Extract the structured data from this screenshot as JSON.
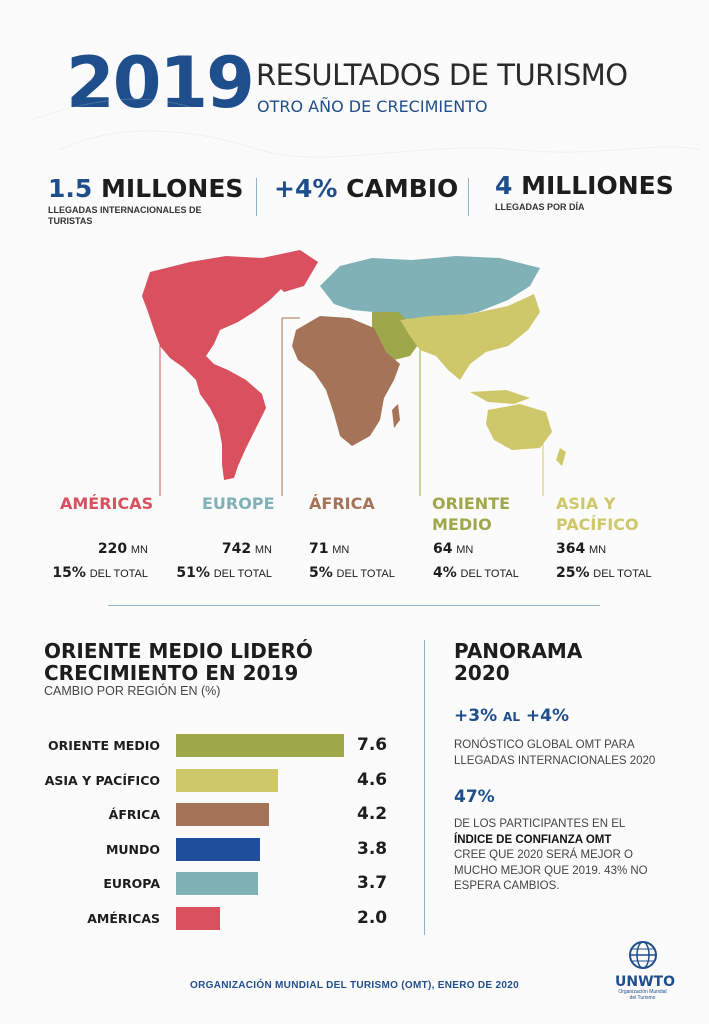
{
  "header": {
    "year": "2019",
    "title": "RESULTADOS DE TURISMO",
    "subtitle": "OTRO AÑO DE CRECIMIENTO"
  },
  "stats": [
    {
      "number": "1.5",
      "word": "MILLONES",
      "label": "LLEGADAS INTERNACIONALES DE TURISTAS"
    },
    {
      "number": "+4%",
      "word": "CAMBIO",
      "label": ""
    },
    {
      "number": "4",
      "word": "MILLIONES",
      "label": "LLEGADAS POR DÍA"
    }
  ],
  "regions": [
    {
      "name_line1": "AMÉRICAS",
      "name_line2": "",
      "value": "220",
      "unit": "MN",
      "share": "15%",
      "share_label": "DEL TOTAL",
      "color": "#d9505f"
    },
    {
      "name_line1": "EUROPE",
      "name_line2": "",
      "value": "742",
      "unit": "MN",
      "share": "51%",
      "share_label": "DEL TOTAL",
      "color": "#7fb1b6"
    },
    {
      "name_line1": "ÁFRICA",
      "name_line2": "",
      "value": "71",
      "unit": "MN",
      "share": "5%",
      "share_label": "DEL TOTAL",
      "color": "#a57358"
    },
    {
      "name_line1": "ORIENTE",
      "name_line2": "MEDIO",
      "value": "64",
      "unit": "MN",
      "share": "4%",
      "share_label": "DEL TOTAL",
      "color": "#9ea84a"
    },
    {
      "name_line1": "ASIA Y",
      "name_line2": "PACÍFICO",
      "value": "364",
      "unit": "MN",
      "share": "25%",
      "share_label": "DEL TOTAL",
      "color": "#cfc86a"
    }
  ],
  "growth": {
    "title_line1": "ORIENTE MEDIO LIDERÓ",
    "title_line2": "CRECIMIENTO EN 2019",
    "subtitle": "CAMBIO POR REGIÓN EN (%)"
  },
  "chart_data": {
    "type": "bar",
    "orientation": "horizontal",
    "categories": [
      "ORIENTE MEDIO",
      "ASIA Y PACÍFICO",
      "ÁFRICA",
      "MUNDO",
      "EUROPA",
      "AMÉRICAS"
    ],
    "values": [
      7.6,
      4.6,
      4.2,
      3.8,
      3.7,
      2.0
    ],
    "labels": [
      "7.6",
      "4.6",
      "4.2",
      "3.8",
      "3.7",
      "2.0"
    ],
    "colors": [
      "#9ea84a",
      "#cfc86a",
      "#a57358",
      "#1f4e9a",
      "#7fb1b6",
      "#d9505f"
    ],
    "title": "ORIENTE MEDIO LIDERÓ CRECIMIENTO EN 2019",
    "subtitle": "CAMBIO POR REGIÓN EN (%)",
    "xlim": [
      0,
      7.6
    ]
  },
  "panorama": {
    "title_line1": "PANORAMA",
    "title_line2": "2020",
    "range_a": "+3%",
    "range_mid": "AL",
    "range_b": "+4%",
    "forecast_text": "RONÓSTICO GLOBAL OMT PARA LLEGADAS INTERNACIONALES 2020",
    "pct": "47%",
    "text_a": "DE LOS PARTICIPANTES EN EL",
    "text_bold": "ÍNDICE DE CONFIANZA OMT",
    "text_b": "CREE QUE 2020 SERÁ MEJOR O MUCHO MEJOR QUE 2019. 43% NO ESPERA CAMBIOS."
  },
  "footer": {
    "text": "ORGANIZACIÓN MUNDIAL DEL TURISMO (OMT), ENERO DE 2020",
    "logo": "UNWTO",
    "logo_sub": "Organización Mundial del Turismo"
  }
}
